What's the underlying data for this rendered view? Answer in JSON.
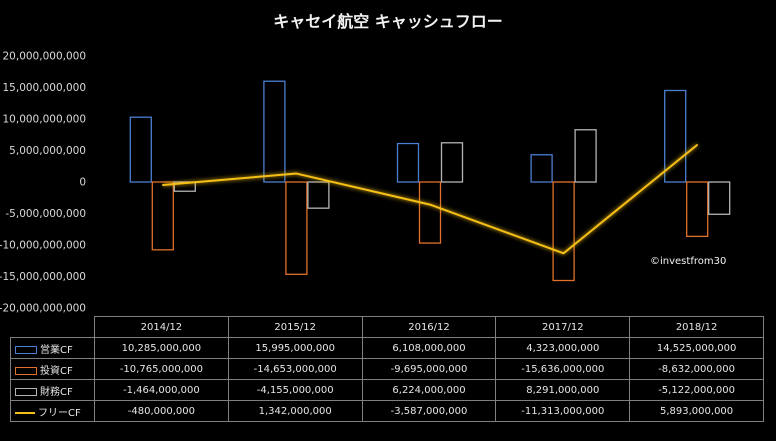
{
  "chart_data": {
    "type": "bar",
    "title": "キャセイ航空 キャッシュフロー",
    "categories": [
      "2014/12",
      "2015/12",
      "2016/12",
      "2017/12",
      "2018/12"
    ],
    "ylim": [
      -20000000000,
      20000000000
    ],
    "yticks": [
      20000000000,
      15000000000,
      10000000000,
      5000000000,
      0,
      -5000000000,
      -10000000000,
      -15000000000,
      -20000000000
    ],
    "ytick_labels": [
      "20,000,000,000",
      "15,000,000,000",
      "10,000,000,000",
      "5,000,000,000",
      "0",
      "-5,000,000,000",
      "-10,000,000,000",
      "-15,000,000,000",
      "-20,000,000,000"
    ],
    "grid": false,
    "legend": "data-table",
    "annotation": "©investfrom30",
    "series": [
      {
        "name": "営業CF",
        "kind": "bar",
        "color": "#4a7fd0",
        "values": [
          10285000000,
          15995000000,
          6108000000,
          4323000000,
          14525000000
        ],
        "labels": [
          "10,285,000,000",
          "15,995,000,000",
          "6,108,000,000",
          "4,323,000,000",
          "14,525,000,000"
        ]
      },
      {
        "name": "投資CF",
        "kind": "bar",
        "color": "#e0702a",
        "values": [
          -10765000000,
          -14653000000,
          -9695000000,
          -15636000000,
          -8632000000
        ],
        "labels": [
          "-10,765,000,000",
          "-14,653,000,000",
          "-9,695,000,000",
          "-15,636,000,000",
          "-8,632,000,000"
        ]
      },
      {
        "name": "財務CF",
        "kind": "bar",
        "color": "#b4b4b4",
        "values": [
          -1464000000,
          -4155000000,
          6224000000,
          8291000000,
          -5122000000
        ],
        "labels": [
          "-1,464,000,000",
          "-4,155,000,000",
          "6,224,000,000",
          "8,291,000,000",
          "-5,122,000,000"
        ]
      },
      {
        "name": "フリーCF",
        "kind": "line",
        "color": "#f5bf16",
        "values": [
          -480000000,
          1342000000,
          -3587000000,
          -11313000000,
          5893000000
        ],
        "labels": [
          "-480,000,000",
          "1,342,000,000",
          "-3,587,000,000",
          "-11,313,000,000",
          "5,893,000,000"
        ]
      }
    ]
  }
}
